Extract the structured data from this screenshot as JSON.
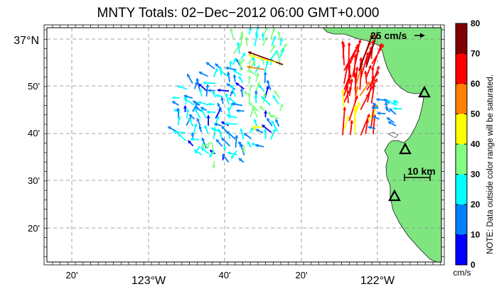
{
  "title": "MNTY Totals: 02−Dec−2012 06:00 GMT+0.000",
  "lat_labels": [
    "37°N",
    "50'",
    "40'",
    "30'",
    "20'"
  ],
  "lon_labels": [
    "20'",
    "123°W",
    "40'",
    "20'",
    "122°W"
  ],
  "colorbar": {
    "ticks": [
      "80",
      "70",
      "60",
      "50",
      "40",
      "30",
      "20",
      "10",
      "0"
    ],
    "units": "cm/s",
    "note": "NOTE: Data outside color range will be saturated.",
    "bins": [
      {
        "range": "70-80",
        "color": "#7f0000"
      },
      {
        "range": "60-70",
        "color": "#ff0000"
      },
      {
        "range": "50-60",
        "color": "#ff7f00"
      },
      {
        "range": "40-50",
        "color": "#ffff00"
      },
      {
        "range": "30-40",
        "color": "#80ff80"
      },
      {
        "range": "20-30",
        "color": "#00ffff"
      },
      {
        "range": "10-20",
        "color": "#0080ff"
      },
      {
        "range": "0-10",
        "color": "#0000ff"
      }
    ]
  },
  "reference_vector_label": "25 cm/s",
  "scale_bar_label": "10 km",
  "map": {
    "land_color": "#7fe67f",
    "ocean_color": "#ffffff",
    "grid": true,
    "station_count_visible": 3
  }
}
